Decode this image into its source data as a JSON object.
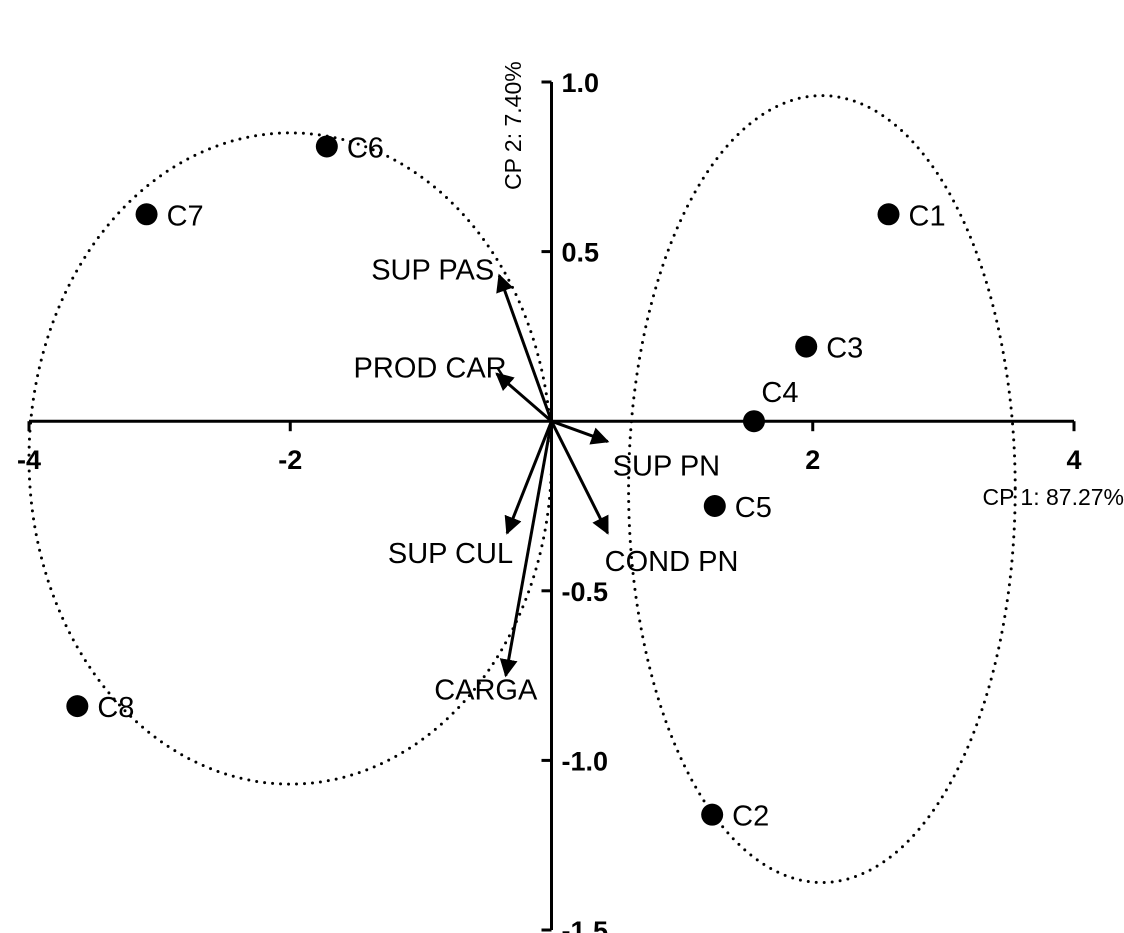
{
  "chart_data": {
    "type": "scatter",
    "title": "",
    "xlabel": "CP 1: 87.27%",
    "ylabel": "CP 2: 7.40%",
    "xlim": [
      -4,
      4
    ],
    "ylim": [
      -1.5,
      1.0
    ],
    "x_ticks": [
      {
        "value": -4,
        "label": "-4"
      },
      {
        "value": -2,
        "label": "-2"
      },
      {
        "value": 2,
        "label": "2"
      },
      {
        "value": 4,
        "label": "4"
      }
    ],
    "y_ticks": [
      {
        "value": 1.0,
        "label": "1.0"
      },
      {
        "value": 0.5,
        "label": "0.5"
      },
      {
        "value": -0.5,
        "label": "-0.5"
      },
      {
        "value": -1.0,
        "label": "-1.0"
      },
      {
        "value": -1.5,
        "label": "-1.5"
      }
    ],
    "grid": false,
    "points": [
      {
        "label": "C1",
        "x": 2.58,
        "y": 0.61
      },
      {
        "label": "C2",
        "x": 1.23,
        "y": -1.16
      },
      {
        "label": "C3",
        "x": 1.95,
        "y": 0.22
      },
      {
        "label": "C4",
        "x": 1.55,
        "y": 0.0
      },
      {
        "label": "C5",
        "x": 1.25,
        "y": -0.25
      },
      {
        "label": "C6",
        "x": -1.72,
        "y": 0.81
      },
      {
        "label": "C7",
        "x": -3.1,
        "y": 0.61
      },
      {
        "label": "C8",
        "x": -3.63,
        "y": -0.84
      }
    ],
    "vectors": [
      {
        "label": "SUP PAS",
        "x": -0.4,
        "y": 0.43
      },
      {
        "label": "PROD CAR",
        "x": -0.42,
        "y": 0.14
      },
      {
        "label": "SUP PN",
        "x": 0.43,
        "y": -0.06
      },
      {
        "label": "SUP CUL",
        "x": -0.34,
        "y": -0.33
      },
      {
        "label": "COND PN",
        "x": 0.43,
        "y": -0.33
      },
      {
        "label": "CARGA",
        "x": -0.35,
        "y": -0.75
      }
    ],
    "groups": [
      {
        "members": [
          "C6",
          "C7",
          "C8"
        ],
        "center": [
          -2.0,
          -0.11
        ],
        "radii": [
          2.0,
          0.96
        ]
      },
      {
        "members": [
          "C1",
          "C2",
          "C3",
          "C4",
          "C5"
        ],
        "center": [
          2.07,
          -0.2
        ],
        "radii": [
          1.48,
          1.16
        ]
      }
    ]
  }
}
